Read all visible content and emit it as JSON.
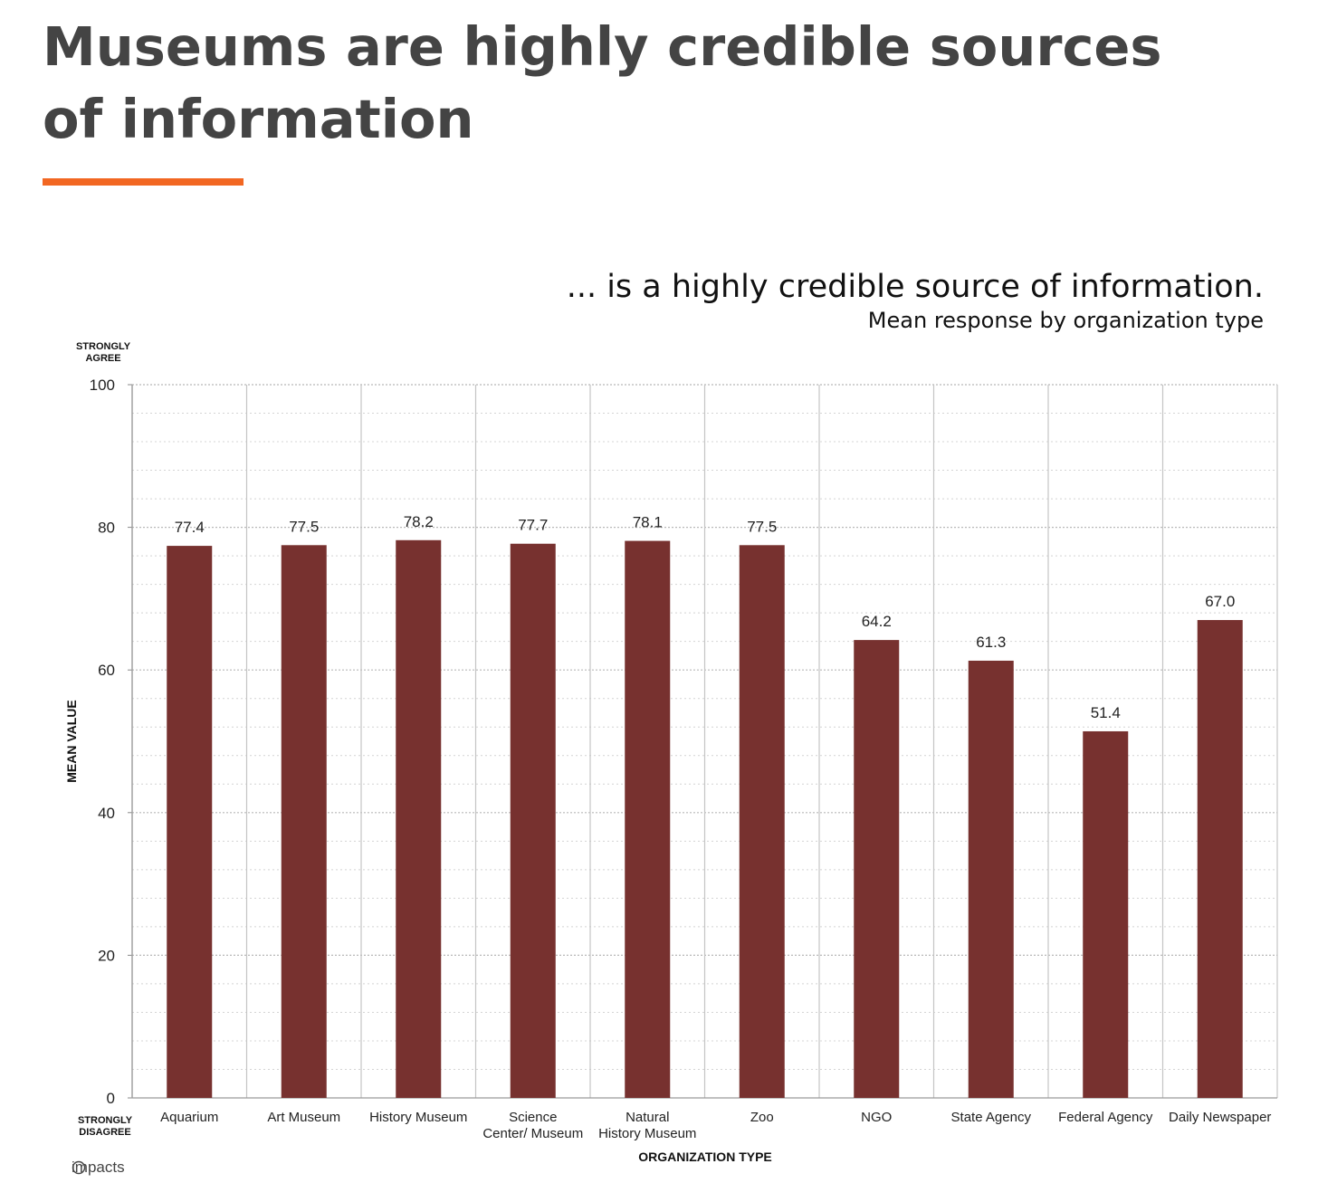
{
  "page": {
    "heading": "Museums are highly credible sources of information",
    "accent_color": "#f26722"
  },
  "chart_data": {
    "type": "bar",
    "title": "... is a highly credible source of information.",
    "subtitle": "Mean response by organization type",
    "xlabel": "ORGANIZATION TYPE",
    "ylabel": "MEAN VALUE",
    "y_top_label": "STRONGLY AGREE",
    "y_bottom_label": "STRONGLY DISAGREE",
    "ylim": [
      0,
      100
    ],
    "yticks": [
      0,
      20,
      40,
      60,
      80,
      100
    ],
    "grid": true,
    "bar_color": "#77312f",
    "categories": [
      "Aquarium",
      "Art Museum",
      "History Museum",
      "Science Center/ Museum",
      "Natural History Museum",
      "Zoo",
      "NGO",
      "State Agency",
      "Federal Agency",
      "Daily Newspaper"
    ],
    "values": [
      77.4,
      77.5,
      78.2,
      77.7,
      78.1,
      77.5,
      64.2,
      61.3,
      51.4,
      67.0
    ],
    "value_labels": [
      "77.4",
      "77.5",
      "78.2",
      "77.7",
      "78.1",
      "77.5",
      "64.2",
      "61.3",
      "51.4",
      "67.0"
    ],
    "source_logo": "impacts"
  }
}
